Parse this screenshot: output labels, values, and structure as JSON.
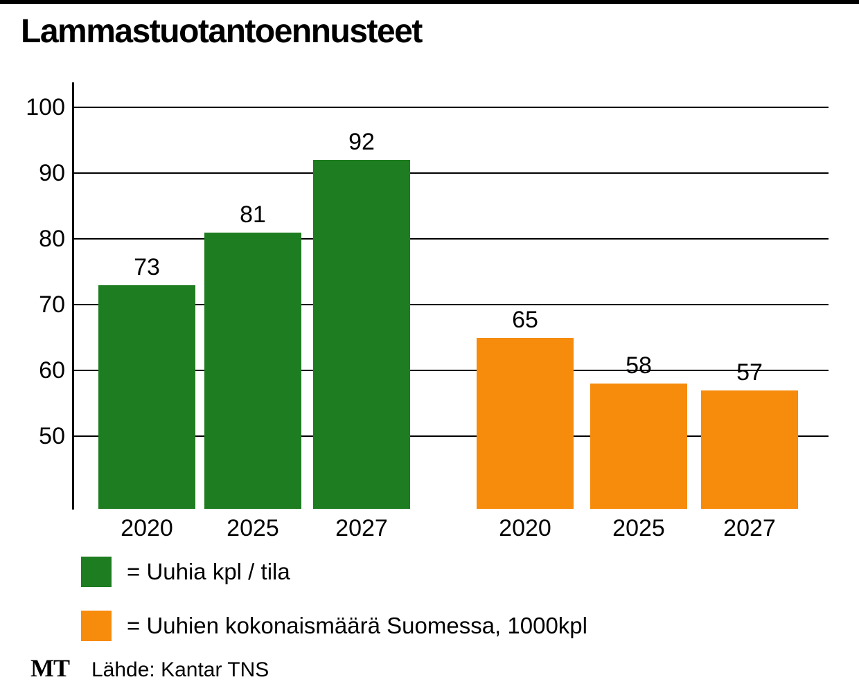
{
  "title": "Lammastuotantoennusteet",
  "colors": {
    "green": "#1e7d20",
    "orange": "#f78b0b",
    "axis": "#000000"
  },
  "chart_data": {
    "type": "bar",
    "title": "Lammastuotantoennusteet",
    "xlabel": "",
    "ylabel": "",
    "yticks": [
      50,
      60,
      70,
      80,
      90,
      100
    ],
    "ylim": [
      39,
      101.5
    ],
    "grid": true,
    "legend_position": "bottom",
    "series": [
      {
        "name": "Uuhia kpl / tila",
        "color_key": "green",
        "categories": [
          "2020",
          "2025",
          "2027"
        ],
        "values": [
          73,
          81,
          92
        ]
      },
      {
        "name": "Uuhien kokonaismäärä Suomessa, 1000kpl",
        "color_key": "orange",
        "categories": [
          "2020",
          "2025",
          "2027"
        ],
        "values": [
          65,
          58,
          57
        ]
      }
    ]
  },
  "legend": [
    {
      "label": "= Uuhia kpl / tila",
      "color_key": "green"
    },
    {
      "label": "= Uuhien kokonaismäärä Suomessa, 1000kpl",
      "color_key": "orange"
    }
  ],
  "footer": {
    "logo": "MT",
    "source": "Lähde: Kantar TNS"
  }
}
